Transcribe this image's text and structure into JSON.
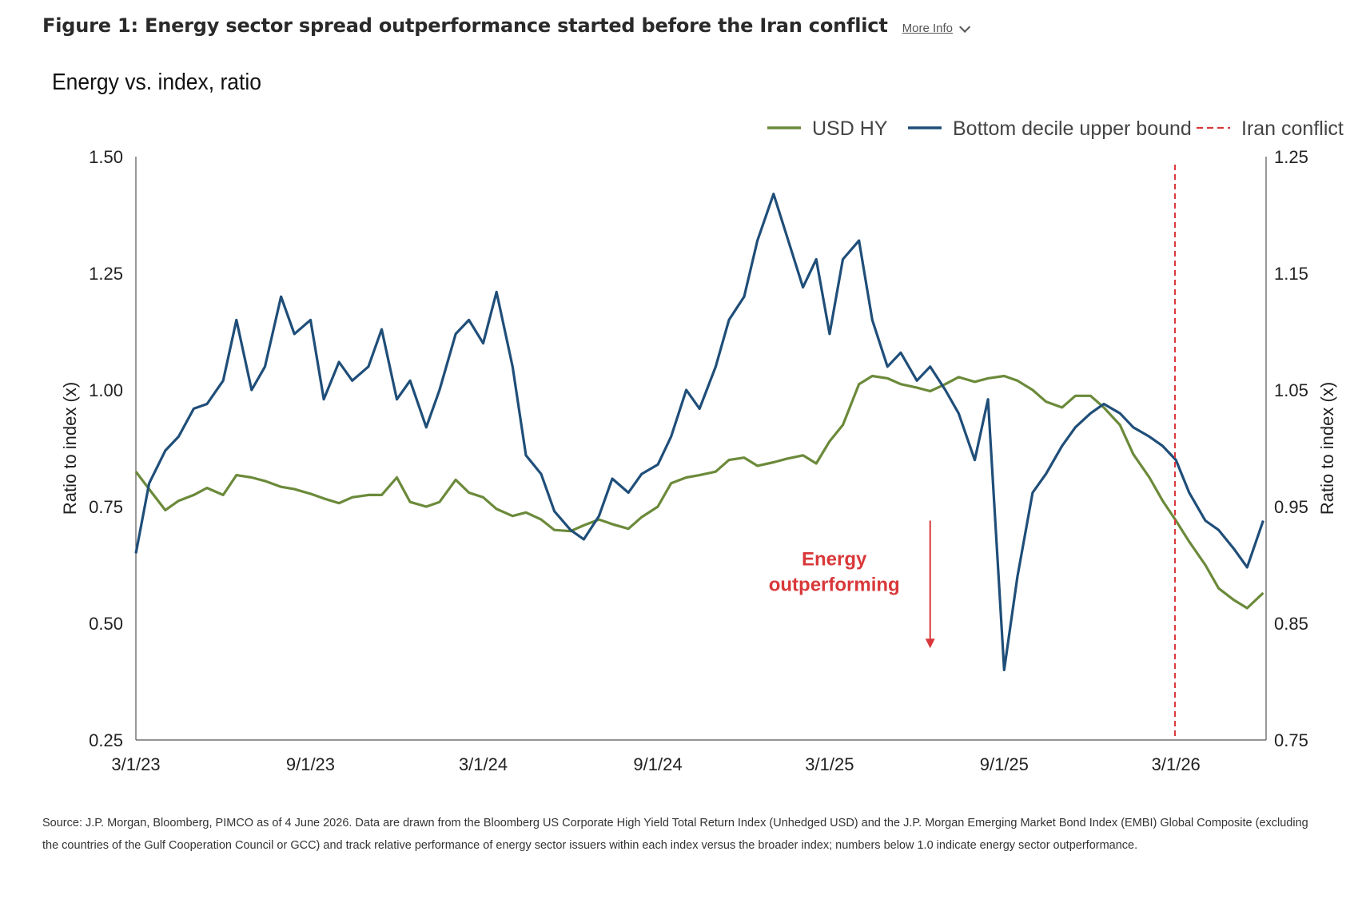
{
  "header": {
    "title": "Figure 1: Energy sector spread outperformance started before the Iran conflict",
    "more_info": "More Info"
  },
  "chart_data": {
    "type": "line",
    "title": "Energy vs. index, ratio",
    "ylabel_left": "Ratio to index (x)",
    "ylabel_right": "Ratio to index (x)",
    "y_left_range": [
      0.25,
      1.5
    ],
    "y_left_ticks": [
      "1.50",
      "1.25",
      "1.00",
      "0.75",
      "0.50",
      "0.25"
    ],
    "y_right_range": [
      0.75,
      1.25
    ],
    "y_right_ticks": [
      "1.25",
      "1.15",
      "1.05",
      "0.95",
      "0.85",
      "0.75"
    ],
    "x_range": [
      "2023-03-01",
      "2026-06-04"
    ],
    "x_ticks": [
      "3/1/23",
      "9/1/23",
      "3/1/24",
      "9/1/24",
      "3/1/25",
      "9/1/25",
      "3/1/26"
    ],
    "legend_position": "top-right",
    "annotation": {
      "text_line1": "Energy",
      "text_line2": "outperforming",
      "x": "2025-06-15",
      "y_top": 0.72,
      "y_bottom": 0.45
    },
    "vline": {
      "name": "Iran conflict",
      "x": "2026-02-28",
      "color": "#d9383a"
    },
    "series": [
      {
        "name": "USD HY",
        "axis": "right",
        "color": "#6b8a3a",
        "x": [
          "2023-03-01",
          "2023-03-15",
          "2023-04-01",
          "2023-04-15",
          "2023-05-01",
          "2023-05-15",
          "2023-06-01",
          "2023-06-15",
          "2023-07-01",
          "2023-07-15",
          "2023-08-01",
          "2023-08-15",
          "2023-09-01",
          "2023-09-15",
          "2023-10-01",
          "2023-10-15",
          "2023-11-01",
          "2023-11-15",
          "2023-12-01",
          "2023-12-15",
          "2024-01-01",
          "2024-01-15",
          "2024-02-01",
          "2024-02-15",
          "2024-03-01",
          "2024-03-15",
          "2024-04-01",
          "2024-04-15",
          "2024-05-01",
          "2024-05-15",
          "2024-06-01",
          "2024-06-15",
          "2024-07-01",
          "2024-07-15",
          "2024-08-01",
          "2024-08-15",
          "2024-09-01",
          "2024-09-15",
          "2024-10-01",
          "2024-10-15",
          "2024-11-01",
          "2024-11-15",
          "2024-12-01",
          "2024-12-15",
          "2025-01-01",
          "2025-01-15",
          "2025-02-01",
          "2025-02-15",
          "2025-03-01",
          "2025-03-15",
          "2025-04-01",
          "2025-04-15",
          "2025-05-01",
          "2025-05-15",
          "2025-06-01",
          "2025-06-15",
          "2025-07-01",
          "2025-07-15",
          "2025-08-01",
          "2025-08-15",
          "2025-09-01",
          "2025-09-15",
          "2025-10-01",
          "2025-10-15",
          "2025-11-01",
          "2025-11-15",
          "2025-12-01",
          "2025-12-15",
          "2026-01-01",
          "2026-01-15",
          "2026-02-01",
          "2026-02-15",
          "2026-03-01",
          "2026-03-15",
          "2026-04-01",
          "2026-04-15",
          "2026-05-01",
          "2026-05-15",
          "2026-06-01"
        ],
        "values": [
          0.98,
          0.965,
          0.947,
          0.955,
          0.96,
          0.966,
          0.96,
          0.977,
          0.975,
          0.972,
          0.967,
          0.965,
          0.961,
          0.957,
          0.953,
          0.958,
          0.96,
          0.96,
          0.975,
          0.954,
          0.95,
          0.954,
          0.973,
          0.962,
          0.958,
          0.948,
          0.942,
          0.945,
          0.939,
          0.93,
          0.929,
          0.934,
          0.939,
          0.935,
          0.931,
          0.941,
          0.95,
          0.97,
          0.975,
          0.977,
          0.98,
          0.99,
          0.992,
          0.985,
          0.988,
          0.991,
          0.994,
          0.987,
          1.006,
          1.02,
          1.055,
          1.062,
          1.06,
          1.055,
          1.052,
          1.049,
          1.055,
          1.061,
          1.057,
          1.06,
          1.062,
          1.058,
          1.05,
          1.04,
          1.035,
          1.045,
          1.045,
          1.035,
          1.02,
          0.995,
          0.975,
          0.955,
          0.938,
          0.92,
          0.9,
          0.88,
          0.87,
          0.863,
          0.876
        ]
      },
      {
        "name": "Bottom decile upper bound",
        "axis": "left",
        "color": "#1f4e79",
        "x": [
          "2023-03-01",
          "2023-03-15",
          "2023-04-01",
          "2023-04-15",
          "2023-05-01",
          "2023-05-15",
          "2023-06-01",
          "2023-06-15",
          "2023-07-01",
          "2023-07-15",
          "2023-08-01",
          "2023-08-15",
          "2023-09-01",
          "2023-09-15",
          "2023-10-01",
          "2023-10-15",
          "2023-11-01",
          "2023-11-15",
          "2023-12-01",
          "2023-12-15",
          "2024-01-01",
          "2024-01-15",
          "2024-02-01",
          "2024-02-15",
          "2024-03-01",
          "2024-03-15",
          "2024-04-01",
          "2024-04-15",
          "2024-05-01",
          "2024-05-15",
          "2024-06-01",
          "2024-06-15",
          "2024-07-01",
          "2024-07-15",
          "2024-08-01",
          "2024-08-15",
          "2024-09-01",
          "2024-09-15",
          "2024-10-01",
          "2024-10-15",
          "2024-11-01",
          "2024-11-15",
          "2024-12-01",
          "2024-12-15",
          "2025-01-01",
          "2025-01-15",
          "2025-02-01",
          "2025-02-15",
          "2025-03-01",
          "2025-03-15",
          "2025-04-01",
          "2025-04-15",
          "2025-05-01",
          "2025-05-15",
          "2025-06-01",
          "2025-06-15",
          "2025-07-01",
          "2025-07-15",
          "2025-08-01",
          "2025-08-15",
          "2025-09-01",
          "2025-09-15",
          "2025-10-01",
          "2025-10-15",
          "2025-11-01",
          "2025-11-15",
          "2025-12-01",
          "2025-12-15",
          "2026-01-01",
          "2026-01-15",
          "2026-02-01",
          "2026-02-15",
          "2026-03-01",
          "2026-03-15",
          "2026-04-01",
          "2026-04-15",
          "2026-05-01",
          "2026-05-15",
          "2026-06-01"
        ],
        "values": [
          0.65,
          0.8,
          0.87,
          0.9,
          0.96,
          0.97,
          1.02,
          1.15,
          1.0,
          1.05,
          1.2,
          1.12,
          1.15,
          0.98,
          1.06,
          1.02,
          1.05,
          1.13,
          0.98,
          1.02,
          0.92,
          1.0,
          1.12,
          1.15,
          1.1,
          1.21,
          1.05,
          0.86,
          0.82,
          0.74,
          0.7,
          0.68,
          0.73,
          0.81,
          0.78,
          0.82,
          0.84,
          0.9,
          1.0,
          0.96,
          1.05,
          1.15,
          1.2,
          1.32,
          1.42,
          1.33,
          1.22,
          1.28,
          1.12,
          1.28,
          1.32,
          1.15,
          1.05,
          1.08,
          1.02,
          1.05,
          1.0,
          0.95,
          0.85,
          0.98,
          0.4,
          0.6,
          0.78,
          0.82,
          0.88,
          0.92,
          0.95,
          0.97,
          0.95,
          0.92,
          0.9,
          0.88,
          0.85,
          0.78,
          0.72,
          0.7,
          0.66,
          0.62,
          0.72
        ]
      }
    ]
  },
  "source_text": "Source: J.P. Morgan, Bloomberg, PIMCO as of 4 June 2026. Data are drawn from the Bloomberg US Corporate High Yield Total Return Index (Unhedged USD) and the J.P. Morgan Emerging Market Bond Index (EMBI) Global Composite (excluding the countries of the Gulf Cooperation Council or GCC) and track relative performance of energy sector issuers within each index versus the broader index; numbers below 1.0 indicate energy sector outperformance."
}
